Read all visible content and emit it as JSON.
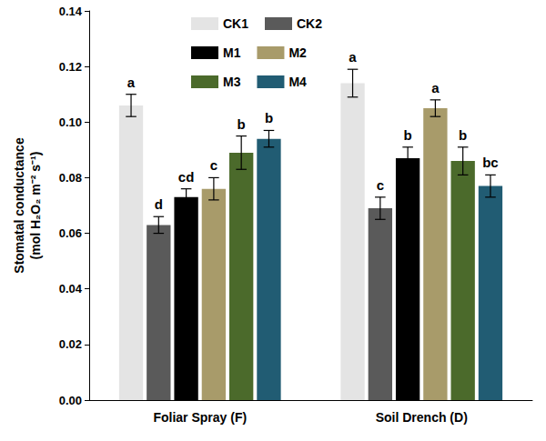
{
  "chart_data": {
    "type": "bar",
    "y_label": "Stomatal conductance (mol H₂O₂ m⁻² s⁻¹)",
    "categories": [
      "Foliar Spray (F)",
      "Soil Drench (D)"
    ],
    "series": [
      {
        "name": "CK1",
        "color": "#e4e4e4",
        "values": [
          0.106,
          0.114
        ],
        "errors": [
          0.004,
          0.005
        ],
        "letters": [
          "a",
          "a"
        ]
      },
      {
        "name": "CK2",
        "color": "#5a5a5a",
        "values": [
          0.063,
          0.069
        ],
        "errors": [
          0.003,
          0.004
        ],
        "letters": [
          "d",
          "c"
        ]
      },
      {
        "name": "M1",
        "color": "#000000",
        "values": [
          0.073,
          0.087
        ],
        "errors": [
          0.003,
          0.004
        ],
        "letters": [
          "cd",
          "b"
        ]
      },
      {
        "name": "M2",
        "color": "#a89b6a",
        "values": [
          0.076,
          0.105
        ],
        "errors": [
          0.004,
          0.003
        ],
        "letters": [
          "c",
          "a"
        ]
      },
      {
        "name": "M3",
        "color": "#4b6a2b",
        "values": [
          0.089,
          0.086
        ],
        "errors": [
          0.006,
          0.005
        ],
        "letters": [
          "b",
          "b"
        ]
      },
      {
        "name": "M4",
        "color": "#215c73",
        "values": [
          0.094,
          0.077
        ],
        "errors": [
          0.003,
          0.004
        ],
        "letters": [
          "b",
          "bc"
        ]
      }
    ],
    "ylim": [
      0,
      0.14
    ],
    "yticks": [
      {
        "value": 0,
        "label": "0.00"
      },
      {
        "value": 0.02,
        "label": "0.02"
      },
      {
        "value": 0.04,
        "label": "0.04"
      },
      {
        "value": 0.06,
        "label": "0.06"
      },
      {
        "value": 0.08,
        "label": "0.08"
      },
      {
        "value": 0.1,
        "label": "0.10"
      },
      {
        "value": 0.12,
        "label": "0.12"
      },
      {
        "value": 0.14,
        "label": "0.14"
      }
    ],
    "grid": false,
    "legend": "upper left"
  }
}
